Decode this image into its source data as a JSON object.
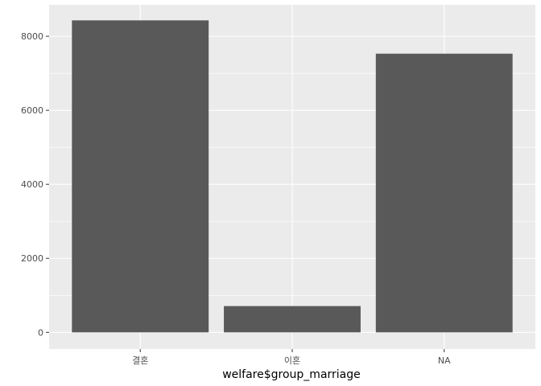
{
  "chart_data": {
    "type": "bar",
    "categories": [
      "결혼",
      "이혼",
      "NA"
    ],
    "values": [
      8430,
      710,
      7530
    ],
    "title": "",
    "xlabel": "welfare$group_marriage",
    "ylabel": "",
    "ylim": [
      -450,
      8850
    ],
    "yticks": [
      0,
      2000,
      4000,
      6000,
      8000
    ],
    "grid": true,
    "legend": "none",
    "colors": {
      "panel_background": "#ebebeb",
      "grid_major": "#ffffff",
      "bar_fill": "#595959",
      "tick_text": "#4d4d4d",
      "axis_title_text": "#000000"
    }
  }
}
